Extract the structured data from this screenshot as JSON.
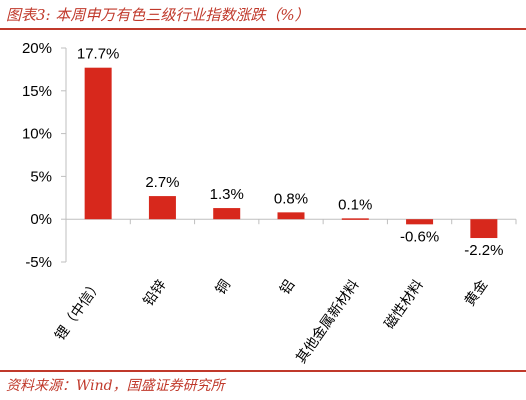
{
  "header": {
    "title": "图表3:  本周申万有色三级行业指数涨跌（%）"
  },
  "footer": {
    "source": "资料来源：Wind，国盛证券研究所"
  },
  "colors": {
    "accent": "#c0392b",
    "bar": "#d7281c",
    "axis": "#bfbfbf"
  },
  "chart_data": {
    "type": "bar",
    "title": "",
    "xlabel": "",
    "ylabel": "",
    "categories": [
      "锂（中信）",
      "铅锌",
      "铜",
      "铝",
      "其他金属新材料",
      "磁性材料",
      "黄金"
    ],
    "values": [
      17.7,
      2.7,
      1.3,
      0.8,
      0.1,
      -0.6,
      -2.2
    ],
    "value_labels": [
      "17.7%",
      "2.7%",
      "1.3%",
      "0.8%",
      "0.1%",
      "-0.6%",
      "-2.2%"
    ],
    "ylim": [
      -5,
      20
    ],
    "yticks": [
      -5,
      0,
      5,
      10,
      15,
      20
    ],
    "ytick_labels": [
      "-5%",
      "0%",
      "5%",
      "10%",
      "15%",
      "20%"
    ],
    "grid": false,
    "legend": "none"
  }
}
